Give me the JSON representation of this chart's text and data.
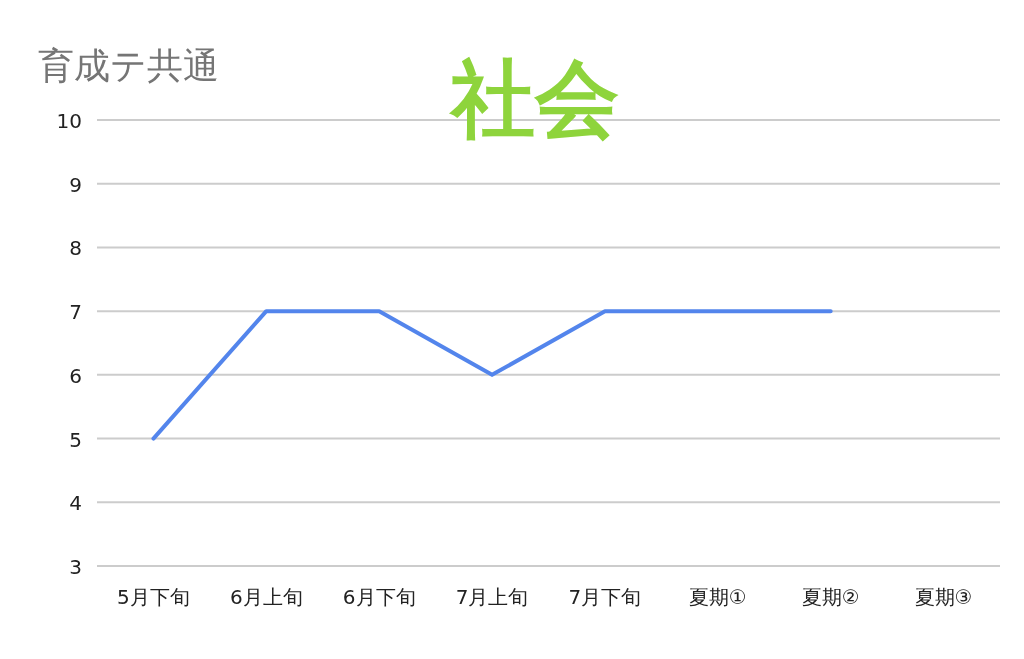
{
  "chart_data": {
    "type": "line",
    "title": "社会",
    "subtitle": "育成テ共通",
    "categories": [
      "5月下旬",
      "6月上旬",
      "6月下旬",
      "7月上旬",
      "7月下旬",
      "夏期①",
      "夏期②",
      "夏期③"
    ],
    "series": [
      {
        "color": "#5385ec",
        "values": [
          5,
          7,
          7,
          6,
          7,
          7,
          7,
          null
        ]
      }
    ],
    "ylim": [
      3,
      10
    ],
    "yticks": [
      3,
      4,
      5,
      6,
      7,
      8,
      9,
      10
    ],
    "grid": "y",
    "marker": "none",
    "line_style": "solid"
  }
}
